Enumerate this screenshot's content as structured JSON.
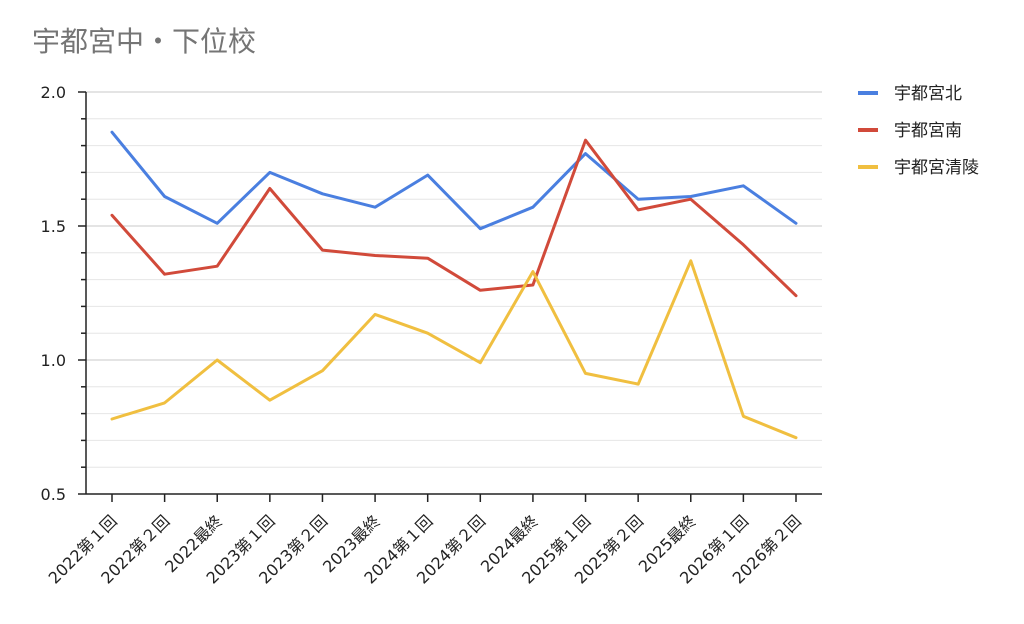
{
  "chart_data": {
    "type": "line",
    "title": "宇都宮中・下位校",
    "xlabel": "",
    "ylabel": "",
    "ylim": [
      0.5,
      2.0
    ],
    "yticks": [
      "0.5",
      "1.0",
      "1.5",
      "2.0"
    ],
    "grid": true,
    "legend_position": "right",
    "categories": [
      "2022第１回",
      "2022第２回",
      "2022最終",
      "2023第１回",
      "2023第２回",
      "2023最終",
      "2024第１回",
      "2024第２回",
      "2024最終",
      "2025第１回",
      "2025第２回",
      "2025最終",
      "2026第１回",
      "2026第２回"
    ],
    "series": [
      {
        "name": "宇都宮北",
        "color": "#4a7fe0",
        "values": [
          1.85,
          1.61,
          1.51,
          1.7,
          1.62,
          1.57,
          1.69,
          1.49,
          1.57,
          1.77,
          1.6,
          1.61,
          1.65,
          1.51
        ]
      },
      {
        "name": "宇都宮南",
        "color": "#d14a3a",
        "values": [
          1.54,
          1.32,
          1.35,
          1.64,
          1.41,
          1.39,
          1.38,
          1.26,
          1.28,
          1.82,
          1.56,
          1.6,
          1.43,
          1.24
        ]
      },
      {
        "name": "宇都宮清陵",
        "color": "#f0bf40",
        "values": [
          0.78,
          0.84,
          1.0,
          0.85,
          0.96,
          1.17,
          1.1,
          0.99,
          1.33,
          0.95,
          0.91,
          1.37,
          0.79,
          0.71
        ]
      }
    ]
  }
}
